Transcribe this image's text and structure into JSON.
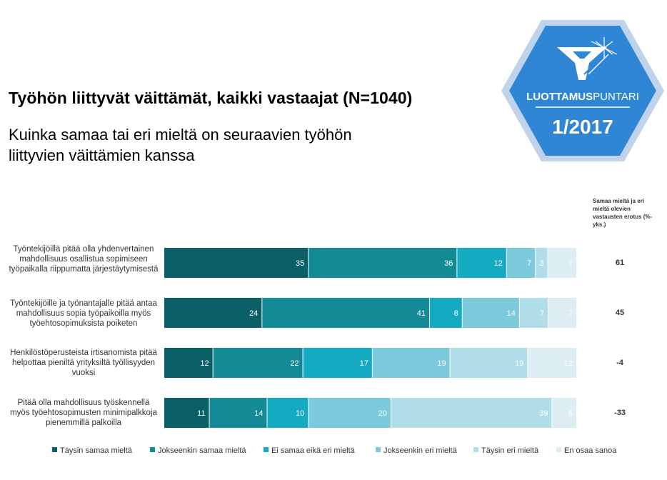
{
  "header": {
    "title": "Työhön liittyvät väittämät, kaikki vastaajat (N=1040)",
    "subtitle": "Kuinka samaa tai eri mieltä on seuraavien työhön liittyvien väittämien kanssa"
  },
  "badge": {
    "brand_bold": "LUOTTAMUS",
    "brand_light": "PUNTARI",
    "issue": "1/2017",
    "colors": {
      "hex_outer": "#bfd4ec",
      "hex_inner": "#2e86d4",
      "text": "#ffffff"
    },
    "icon": "funnel-star-logo-icon"
  },
  "diff_header": "Samaa mieltä ja eri mieltä olevien vastausten erotus (%-yks.)",
  "chart_data": {
    "type": "bar",
    "orientation": "horizontal",
    "stacked": true,
    "categories": [
      "Työntekijöillä pitää olla yhdenvertainen mahdollisuus osallistua sopimiseen työpaikalla riippumatta järjestäytymisestä",
      "Työntekijöille ja työnantajalle pitää antaa mahdollisuus sopia työpaikoilla myös työehtosopimuksista poiketen",
      "Henkilöstöperusteista irtisanomista pitää helpottaa pieniltä yrityksiltä työllisyyden vuoksi",
      "Pitää olla mahdollisuus työskennellä myös työehtosopimusten minimipalkkoja pienemmillä palkoilla"
    ],
    "series": [
      {
        "name": "Täysin samaa mieltä",
        "color": "#0b5f67",
        "values": [
          35,
          24,
          12,
          11
        ]
      },
      {
        "name": "Jokseenkin samaa mieltä",
        "color": "#138a96",
        "values": [
          36,
          41,
          22,
          14
        ]
      },
      {
        "name": "Ei samaa eikä eri mieltä",
        "color": "#14aac2",
        "values": [
          12,
          8,
          17,
          10
        ]
      },
      {
        "name": "Jokseenkin eri mieltä",
        "color": "#7ccadb",
        "values": [
          7,
          14,
          19,
          20
        ]
      },
      {
        "name": "Täysin eri mieltä",
        "color": "#b1dde8",
        "values": [
          3,
          7,
          19,
          39
        ]
      },
      {
        "name": "En osaa sanoa",
        "color": "#dcedf3",
        "values": [
          7,
          7,
          12,
          6
        ]
      }
    ],
    "differences": [
      "61",
      "45",
      "-4",
      "-33"
    ],
    "xlim": [
      0,
      100
    ],
    "legend_position": "bottom"
  }
}
